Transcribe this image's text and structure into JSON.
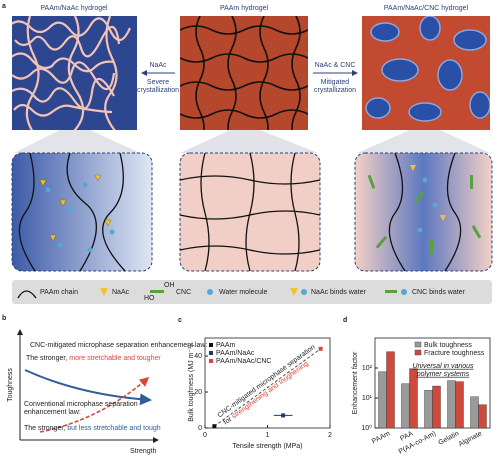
{
  "panel_a": {
    "letter": "a",
    "images": [
      {
        "label": "PAAm/NaAc hydrogel"
      },
      {
        "label": "PAAm hydrogel"
      },
      {
        "label": "PAAm/NaAc/CNC hydrogel"
      }
    ],
    "arrows": [
      {
        "top": "NaAc",
        "bottom": [
          "Severe",
          "crystallization"
        ]
      },
      {
        "top": "NaAc & CNC",
        "bottom": [
          "Mitigated",
          "crystallization"
        ]
      }
    ],
    "legend": [
      "PAAm chain",
      "NaAc",
      "CNC",
      "Water molecule",
      "NaAc binds water",
      "CNC binds water"
    ],
    "group_labels": [
      "OH",
      "HO"
    ]
  },
  "panel_b": {
    "letter": "b",
    "y_label": "Toughness",
    "x_label": "Strength",
    "upper_law": "CNC-mitigated microphase separation enhancement law:",
    "upper_result": [
      "The stronger,",
      "more stretchable and tougher"
    ],
    "lower_law": [
      "Conventional microphase separation",
      "enhancement law:"
    ],
    "lower_result": [
      "The stronger,",
      "but less stretchable and tough"
    ]
  },
  "chart_data": [
    {
      "type": "scatter",
      "letter": "c",
      "x_label": "Tensile strength (MPa)",
      "y_label": "Bulk toughness (MJ m⁻³)",
      "xlim": [
        0,
        2
      ],
      "xticks": [
        0,
        1,
        2
      ],
      "ylim": [
        0,
        50
      ],
      "yticks": [
        0,
        20,
        40
      ],
      "annotation": [
        "CNC-mitigated microphase separation",
        "for",
        "strengthening and toughening"
      ],
      "series": [
        {
          "name": "PAAm",
          "color": "#111111",
          "x": [
            0.15
          ],
          "values": [
            1
          ]
        },
        {
          "name": "PAAm/NaAc",
          "color": "#1f3a6e",
          "x": [
            1.25
          ],
          "values": [
            7
          ],
          "xerr": [
            0.15
          ]
        },
        {
          "name": "PAAm/NaAc/CNC",
          "color": "#d9473a",
          "x": [
            1.85
          ],
          "values": [
            44
          ]
        }
      ]
    },
    {
      "type": "bar",
      "letter": "d",
      "y_label": "Enhancement factor",
      "log_scale": true,
      "ylim": [
        1,
        1000
      ],
      "yticks": [
        {
          "value": 1,
          "label": "10⁰"
        },
        {
          "value": 10,
          "label": "10¹"
        },
        {
          "value": 100,
          "label": "10²"
        }
      ],
      "categories": [
        "PAAm",
        "PAA",
        "P(AA-co-Am)",
        "Gelatin",
        "Alginate"
      ],
      "annotation": [
        "Universal in various",
        "polymer systems"
      ],
      "series": [
        {
          "name": "Bulk toughness",
          "color": "#9a9a9a",
          "values": [
            75,
            30,
            18,
            38,
            11
          ]
        },
        {
          "name": "Fracture toughness",
          "color": "#cf4a3c",
          "values": [
            350,
            95,
            25,
            35,
            6
          ]
        }
      ]
    }
  ]
}
